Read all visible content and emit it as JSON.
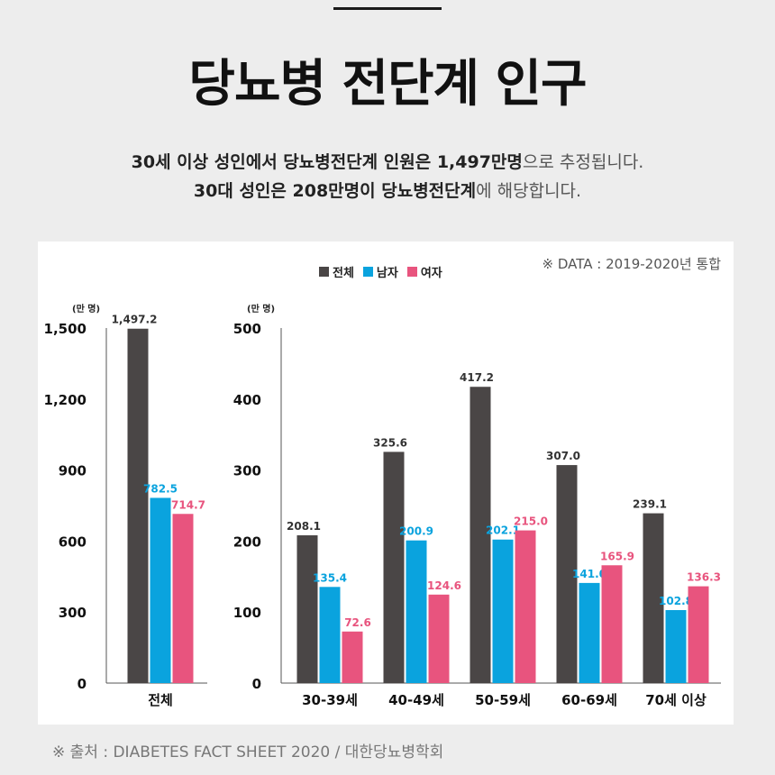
{
  "title": "당뇨병 전단계 인구",
  "subtitle": {
    "line1": [
      {
        "text": "30세 이상 성인에서 당뇨병전단계 인원은 1,497만명",
        "bold": true
      },
      {
        "text": "으로 추정됩니다.",
        "bold": false
      }
    ],
    "line2": [
      {
        "text": "30대 성인은 208만명이 당뇨병전단계",
        "bold": true
      },
      {
        "text": "에 해당합니다.",
        "bold": false
      }
    ]
  },
  "note": "※ DATA : 2019-2020년 통합",
  "source": "※ 출처 : DIABETES FACT SHEET 2020 / 대한당뇨병학회",
  "colors": {
    "total": "#4a4646",
    "male": "#0aa3de",
    "female": "#e8547e"
  },
  "chart_data": [
    {
      "type": "bar",
      "unit_label": "(만 명)",
      "ylim": [
        0,
        1500
      ],
      "yticks": [
        "0",
        "300",
        "600",
        "900",
        "1,200",
        "1,500"
      ],
      "ytick_values": [
        0,
        300,
        600,
        900,
        1200,
        1500
      ],
      "categories": [
        "전체"
      ],
      "series": [
        {
          "name": "전체",
          "values": [
            1497.2
          ],
          "labels": [
            "1,497.2"
          ]
        },
        {
          "name": "남자",
          "values": [
            782.5
          ],
          "labels": [
            "782.5"
          ]
        },
        {
          "name": "여자",
          "values": [
            714.7
          ],
          "labels": [
            "714.7"
          ]
        }
      ]
    },
    {
      "type": "bar",
      "unit_label": "(만 명)",
      "ylim": [
        0,
        500
      ],
      "yticks": [
        "0",
        "100",
        "200",
        "300",
        "400",
        "500"
      ],
      "ytick_values": [
        0,
        100,
        200,
        300,
        400,
        500
      ],
      "categories": [
        "30-39세",
        "40-49세",
        "50-59세",
        "60-69세",
        "70세 이상"
      ],
      "series": [
        {
          "name": "전체",
          "values": [
            208.1,
            325.6,
            417.2,
            307.0,
            239.1
          ],
          "labels": [
            "208.1",
            "325.6",
            "417.2",
            "307.0",
            "239.1"
          ]
        },
        {
          "name": "남자",
          "values": [
            135.4,
            200.9,
            202.1,
            141.0,
            102.8
          ],
          "labels": [
            "135.4",
            "200.9",
            "202.1",
            "141.0",
            "102.8"
          ]
        },
        {
          "name": "여자",
          "values": [
            72.6,
            124.6,
            215.0,
            165.9,
            136.3
          ],
          "labels": [
            "72.6",
            "124.6",
            "215.0",
            "165.9",
            "136.3"
          ]
        }
      ]
    }
  ],
  "legend": [
    {
      "label": "전체",
      "color": "#4a4646"
    },
    {
      "label": "남자",
      "color": "#0aa3de"
    },
    {
      "label": "여자",
      "color": "#e8547e"
    }
  ]
}
